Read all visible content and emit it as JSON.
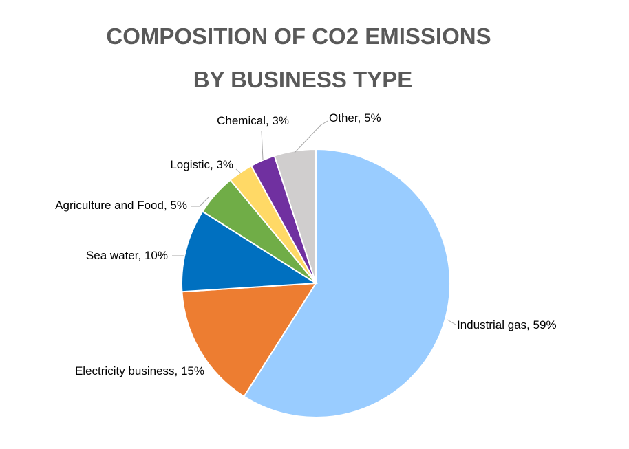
{
  "chart_data": {
    "type": "pie",
    "title_lines": [
      "COMPOSITION OF CO2 EMISSIONS",
      "BY BUSINESS TYPE"
    ],
    "slices": [
      {
        "label": "Industrial gas, 59%",
        "name": "Industrial gas",
        "value": 59,
        "color": "#99ccff"
      },
      {
        "label": "Electricity  business, 15%",
        "name": "Electricity  business",
        "value": 15,
        "color": "#ed7d31"
      },
      {
        "label": "Sea water, 10%",
        "name": "Sea water",
        "value": 10,
        "color": "#0070c0"
      },
      {
        "label": "Agriculture and Food, 5%",
        "name": "Agriculture and Food",
        "value": 5,
        "color": "#70ad47"
      },
      {
        "label": "Logistic, 3%",
        "name": "Logistic",
        "value": 3,
        "color": "#ffd966"
      },
      {
        "label": "Chemical, 3%",
        "name": "Chemical",
        "value": 3,
        "color": "#7030a0"
      },
      {
        "label": "Other, 5%",
        "name": "Other",
        "value": 5,
        "color": "#d0cece"
      }
    ],
    "start_angle_deg": 0,
    "direction": "clockwise",
    "legend": "none"
  }
}
